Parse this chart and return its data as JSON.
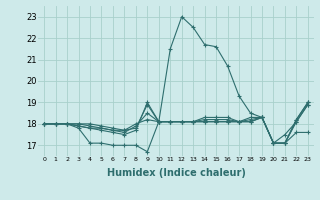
{
  "xlabel": "Humidex (Indice chaleur)",
  "xlim": [
    -0.5,
    23.5
  ],
  "ylim": [
    16.5,
    23.5
  ],
  "yticks": [
    17,
    18,
    19,
    20,
    21,
    22,
    23
  ],
  "xticks": [
    0,
    1,
    2,
    3,
    4,
    5,
    6,
    7,
    8,
    9,
    10,
    11,
    12,
    13,
    14,
    15,
    16,
    17,
    18,
    19,
    20,
    21,
    22,
    23
  ],
  "bg_color": "#ceeaea",
  "grid_color": "#a8d0cc",
  "line_color": "#2e6e6e",
  "curves": [
    [
      18.0,
      18.0,
      18.0,
      17.8,
      17.1,
      17.1,
      17.0,
      17.0,
      17.0,
      16.7,
      18.1,
      21.5,
      23.0,
      22.5,
      21.7,
      21.6,
      20.7,
      19.3,
      18.5,
      18.3,
      17.1,
      17.5,
      18.1,
      18.9
    ],
    [
      18.0,
      18.0,
      18.0,
      17.9,
      17.8,
      17.7,
      17.6,
      17.5,
      17.7,
      19.0,
      18.1,
      18.1,
      18.1,
      18.1,
      18.3,
      18.3,
      18.3,
      18.1,
      18.3,
      18.3,
      17.1,
      17.1,
      17.6,
      17.6
    ],
    [
      18.0,
      18.0,
      18.0,
      17.9,
      17.8,
      17.8,
      17.7,
      17.7,
      17.8,
      18.9,
      18.1,
      18.1,
      18.1,
      18.1,
      18.2,
      18.2,
      18.2,
      18.1,
      18.2,
      18.3,
      17.1,
      17.1,
      18.1,
      18.9
    ],
    [
      18.0,
      18.0,
      18.0,
      18.0,
      17.9,
      17.8,
      17.7,
      17.6,
      17.9,
      18.5,
      18.1,
      18.1,
      18.1,
      18.1,
      18.1,
      18.1,
      18.1,
      18.1,
      18.1,
      18.3,
      17.1,
      17.1,
      18.2,
      19.0
    ],
    [
      18.0,
      18.0,
      18.0,
      18.0,
      18.0,
      17.9,
      17.8,
      17.7,
      18.0,
      18.2,
      18.1,
      18.1,
      18.1,
      18.1,
      18.1,
      18.1,
      18.1,
      18.1,
      18.1,
      18.3,
      17.1,
      17.1,
      18.2,
      19.0
    ]
  ]
}
